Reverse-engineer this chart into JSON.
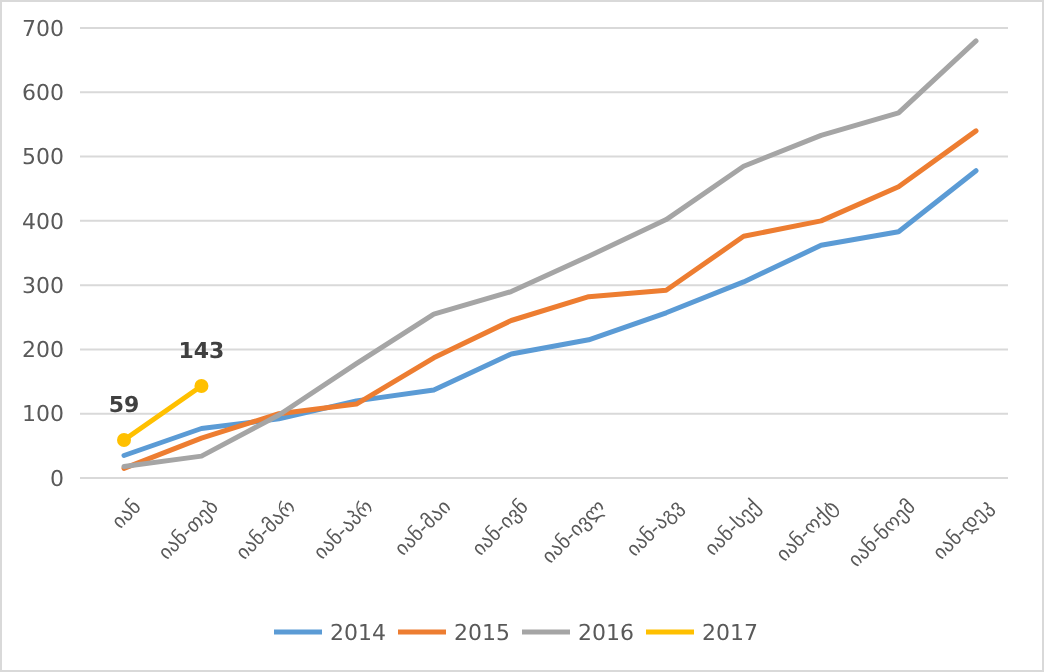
{
  "chart_data": {
    "type": "line",
    "categories": [
      "იან",
      "იან-თებ",
      "იან-მარ",
      "იან-აპრ",
      "იან-მაი",
      "იან-ივნ",
      "იან-ივლ",
      "იან-აგვ",
      "იან-სექ",
      "იან-ოქტ",
      "იან-ნოემ",
      "იან-დეკ"
    ],
    "series": [
      {
        "name": "2014",
        "color": "#5b9bd5",
        "values": [
          35,
          77,
          92,
          120,
          137,
          193,
          215,
          257,
          305,
          362,
          383,
          478
        ]
      },
      {
        "name": "2015",
        "color": "#ed7d31",
        "values": [
          15,
          62,
          100,
          115,
          187,
          245,
          282,
          292,
          376,
          400,
          453,
          540
        ]
      },
      {
        "name": "2016",
        "color": "#a5a5a5",
        "values": [
          18,
          34,
          98,
          178,
          255,
          290,
          345,
          402,
          485,
          533,
          568,
          680
        ]
      },
      {
        "name": "2017",
        "color": "#ffc000",
        "values": [
          59,
          143,
          null,
          null,
          null,
          null,
          null,
          null,
          null,
          null,
          null,
          null
        ],
        "marker": "circle",
        "data_labels": true
      }
    ],
    "ylim": [
      0,
      700
    ],
    "yticks": [
      0,
      100,
      200,
      300,
      400,
      500,
      600,
      700
    ],
    "grid": "y",
    "legend": "bottom",
    "marker": "none",
    "line_style": "solid"
  }
}
